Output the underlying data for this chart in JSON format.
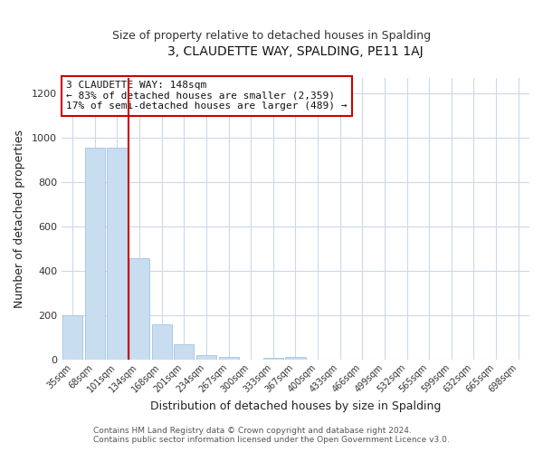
{
  "title": "3, CLAUDETTE WAY, SPALDING, PE11 1AJ",
  "subtitle": "Size of property relative to detached houses in Spalding",
  "xlabel": "Distribution of detached houses by size in Spalding",
  "ylabel": "Number of detached properties",
  "bar_labels": [
    "35sqm",
    "68sqm",
    "101sqm",
    "134sqm",
    "168sqm",
    "201sqm",
    "234sqm",
    "267sqm",
    "300sqm",
    "333sqm",
    "367sqm",
    "400sqm",
    "433sqm",
    "466sqm",
    "499sqm",
    "532sqm",
    "565sqm",
    "599sqm",
    "632sqm",
    "665sqm",
    "698sqm"
  ],
  "bar_values": [
    200,
    955,
    955,
    460,
    160,
    72,
    22,
    15,
    0,
    10,
    15,
    0,
    0,
    0,
    0,
    0,
    0,
    0,
    0,
    0,
    0
  ],
  "bar_color": "#c8ddf0",
  "bar_edge_color": "#a0c4e0",
  "annotation_line_color": "#cc0000",
  "annotation_box_text": "3 CLAUDETTE WAY: 148sqm\n← 83% of detached houses are smaller (2,359)\n17% of semi-detached houses are larger (489) →",
  "ylim": [
    0,
    1270
  ],
  "yticks": [
    0,
    200,
    400,
    600,
    800,
    1000,
    1200
  ],
  "footer_line1": "Contains HM Land Registry data © Crown copyright and database right 2024.",
  "footer_line2": "Contains public sector information licensed under the Open Government Licence v3.0.",
  "background_color": "#ffffff",
  "grid_color": "#ccd9e8",
  "title_fontsize": 10,
  "subtitle_fontsize": 9
}
